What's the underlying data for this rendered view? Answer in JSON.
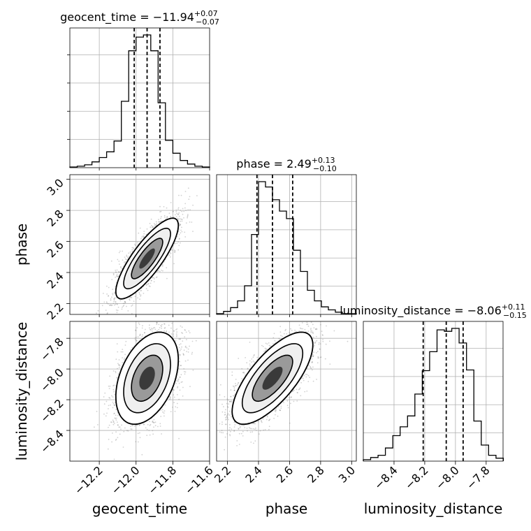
{
  "chart_data": {
    "type": "corner",
    "parameters": [
      "geocent_time",
      "phase",
      "luminosity_distance"
    ],
    "axis_labels": {
      "x": [
        "geocent_time",
        "phase",
        "luminosity_distance"
      ],
      "y": [
        "phase",
        "luminosity_distance"
      ]
    },
    "titles": [
      {
        "name": "geocent_time",
        "value": "−11.94",
        "plus": "+0.07",
        "minus": "−0.07"
      },
      {
        "name": "phase",
        "value": "2.49",
        "plus": "+0.13",
        "minus": "−0.10"
      },
      {
        "name": "luminosity_distance",
        "value": "−8.06",
        "plus": "+0.11",
        "minus": "−0.15"
      }
    ],
    "ranges": [
      [
        -12.36,
        -11.6
      ],
      [
        2.13,
        3.03
      ],
      [
        -8.6,
        -7.69
      ]
    ],
    "ticks": [
      {
        "values": [
          -12.2,
          -12.0,
          -11.8,
          -11.6
        ],
        "labels": [
          "−12.2",
          "−12.0",
          "−11.8",
          "−11.6"
        ]
      },
      {
        "values": [
          2.2,
          2.4,
          2.6,
          2.8,
          3.0
        ],
        "labels": [
          "2.2",
          "2.4",
          "2.6",
          "2.8",
          "3.0"
        ]
      },
      {
        "values": [
          -8.4,
          -8.2,
          -8.0,
          -7.8
        ],
        "labels": [
          "−8.4",
          "−8.2",
          "−8.0",
          "−7.8"
        ]
      }
    ],
    "quantiles": [
      [
        -12.01,
        -11.94,
        -11.87
      ],
      [
        2.39,
        2.49,
        2.62
      ],
      [
        -8.21,
        -8.06,
        -7.95
      ]
    ],
    "histograms": [
      {
        "edges": [
          -12.36,
          -12.32,
          -12.28,
          -12.24,
          -12.2,
          -12.16,
          -12.12,
          -12.08,
          -12.04,
          -12.0,
          -11.96,
          -11.92,
          -11.88,
          -11.84,
          -11.8,
          -11.76,
          -11.72,
          -11.68,
          -11.64,
          -11.6
        ],
        "counts": [
          1,
          2,
          4,
          8,
          14,
          22,
          37,
          92,
          162,
          181,
          184,
          162,
          90,
          38,
          20,
          10,
          5,
          2,
          1
        ]
      },
      {
        "edges": [
          2.13,
          2.175,
          2.22,
          2.265,
          2.31,
          2.355,
          2.4,
          2.445,
          2.49,
          2.535,
          2.58,
          2.625,
          2.67,
          2.715,
          2.76,
          2.805,
          2.85,
          2.895,
          2.94,
          2.985,
          3.03
        ],
        "counts": [
          1,
          4,
          9,
          18,
          38,
          106,
          176,
          169,
          152,
          137,
          127,
          85,
          57,
          32,
          18,
          10,
          6,
          3,
          1,
          1
        ]
      },
      {
        "edges": [
          -8.6,
          -8.552,
          -8.504,
          -8.456,
          -8.408,
          -8.36,
          -8.312,
          -8.264,
          -8.216,
          -8.168,
          -8.12,
          -8.072,
          -8.024,
          -7.976,
          -7.928,
          -7.88,
          -7.832,
          -7.784,
          -7.736,
          -7.688
        ],
        "counts": [
          2,
          5,
          8,
          18,
          35,
          47,
          62,
          92,
          124,
          150,
          180,
          178,
          182,
          162,
          125,
          55,
          22,
          8,
          4
        ]
      }
    ],
    "pairs": [
      {
        "x": "geocent_time",
        "y": "phase",
        "mean": [
          -11.94,
          2.49
        ],
        "sd": [
          0.085,
          0.13
        ],
        "rho": 0.82
      },
      {
        "x": "geocent_time",
        "y": "luminosity_distance",
        "mean": [
          -11.94,
          -8.06
        ],
        "sd": [
          0.085,
          0.15
        ],
        "rho": 0.4
      },
      {
        "x": "phase",
        "y": "luminosity_distance",
        "mean": [
          2.49,
          -8.06
        ],
        "sd": [
          0.13,
          0.15
        ],
        "rho": 0.72
      }
    ],
    "contour_levels": [
      0.5,
      1.0,
      1.5,
      2.0
    ],
    "grid": true
  }
}
